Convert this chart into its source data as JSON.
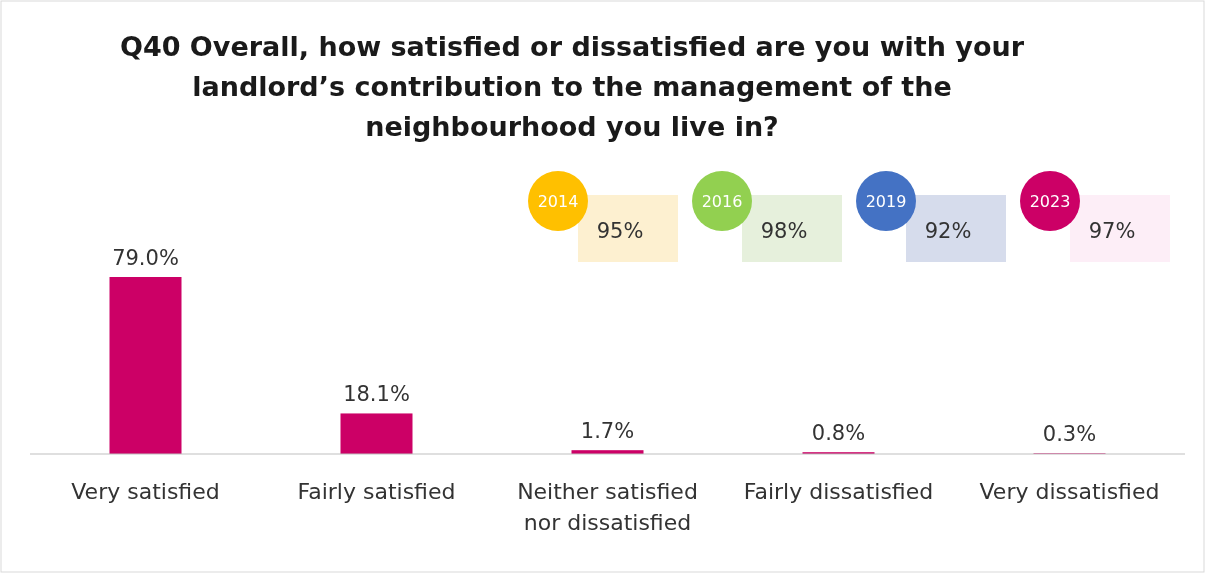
{
  "chart_data": {
    "type": "bar",
    "title": "Q40 Overall, how satisfied or dissatisfied are you with your landlord’s contribution to the management of the neighbourhood you live in?",
    "categories": [
      "Very satisfied",
      "Fairly satisfied",
      "Neither satisfied nor dissatisfied",
      "Fairly dissatisfied",
      "Very dissatisfied"
    ],
    "values": [
      79.0,
      18.1,
      1.7,
      0.8,
      0.3
    ],
    "color": "#cc0066",
    "value_labels": [
      "79.0%",
      "18.1%",
      "1.7%",
      "0.8%",
      "0.3%"
    ],
    "annotations": [
      "2014",
      "95%",
      "2016",
      "98%",
      "2019",
      "92%",
      "2023",
      "97%"
    ]
  }
}
